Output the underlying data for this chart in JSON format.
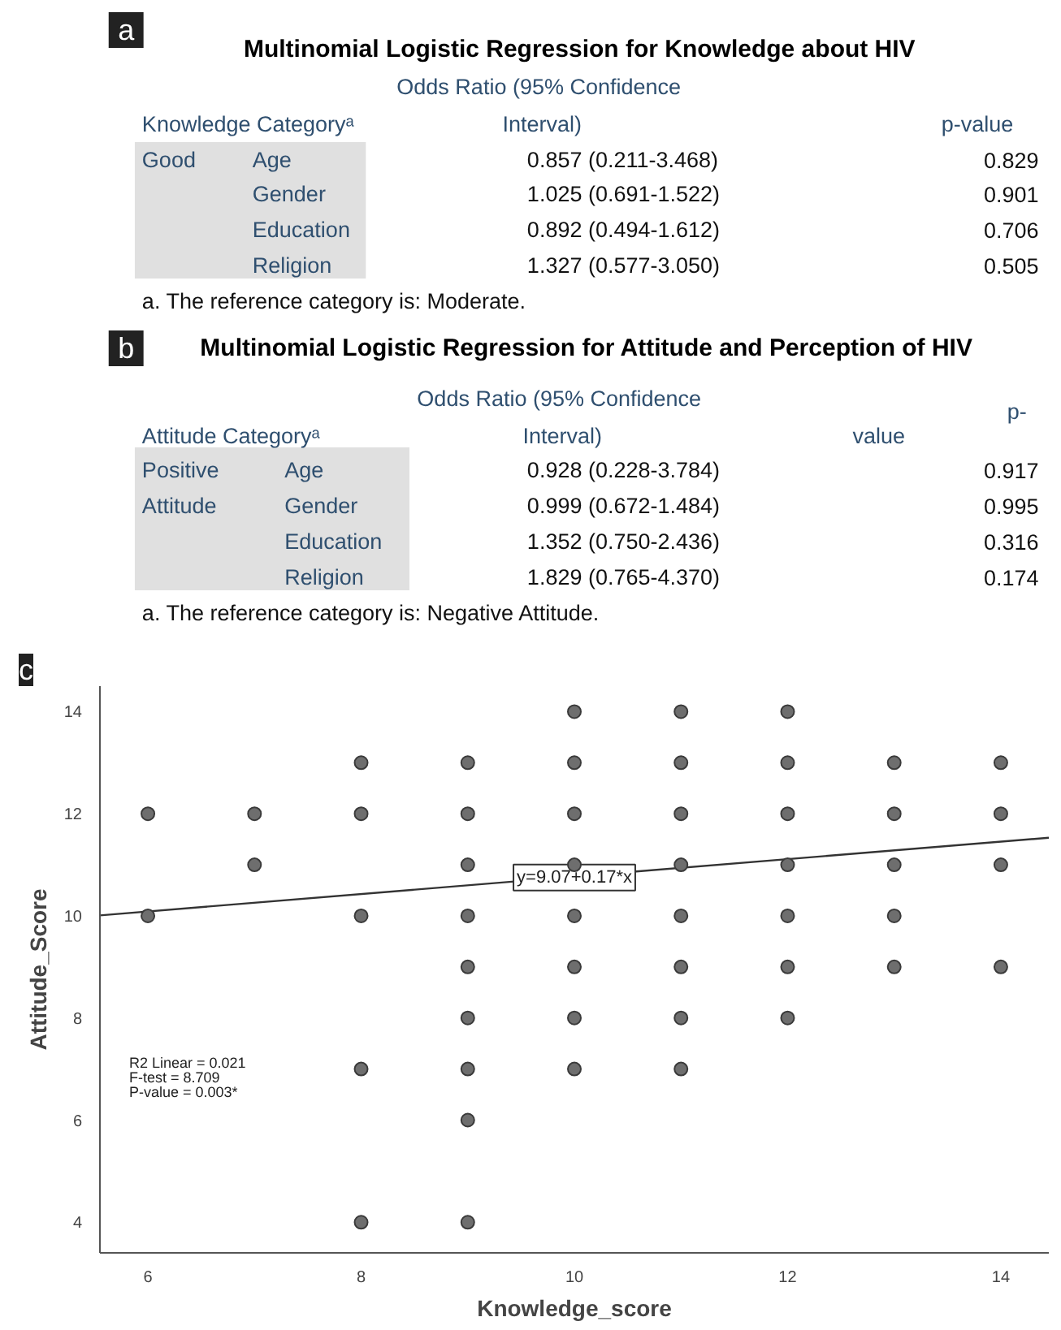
{
  "chart_data": [
    {
      "type": "other",
      "title": "Multinomial Logistic Regression for Knowledge about HIV",
      "annotations": [
        "a",
        "Odds Ratio (95% Confidence",
        "Knowledge Categoryᵃ",
        "Interval)",
        "p-value",
        "Good",
        "Age",
        "0.857 (0.211-3.468)",
        "0.829",
        "Gender",
        "1.025 (0.691-1.522)",
        "0.901",
        "Education",
        "0.892 (0.494-1.612)",
        "0.706",
        "Religion",
        "1.327 (0.577-3.050)",
        "0.505",
        "a. The reference category is: Moderate."
      ]
    },
    {
      "type": "other",
      "title": "Multinomial Logistic Regression for Attitude and Perception of HIV",
      "annotations": [
        "b",
        "Odds Ratio (95% Confidence",
        "p-",
        "Attitude Categoryᵃ",
        "Interval)",
        "value",
        "Positive",
        "Age",
        "0.928 (0.228-3.784)",
        "0.917",
        "Attitude",
        "Gender",
        "0.999 (0.672-1.484)",
        "0.995",
        "Education",
        "1.352 (0.750-2.436)",
        "0.316",
        "Religion",
        "1.829 (0.765-4.370)",
        "0.174",
        "a. The reference category is: Negative Attitude."
      ]
    },
    {
      "type": "scatter",
      "xlabel": "Knowledge_score",
      "ylabel": "Attitude_Score",
      "xlim": [
        5.55,
        14.45
      ],
      "ylim": [
        3.4,
        14.5
      ],
      "xticks": [
        6,
        8,
        10,
        12,
        14
      ],
      "yticks": [
        4,
        6,
        8,
        10,
        12,
        14
      ],
      "grid": false,
      "marker": "circle",
      "series": [
        {
          "type": "scatter",
          "color": "#6e6e6e",
          "x": [
            6,
            6,
            7,
            7,
            8,
            8,
            8,
            8,
            8,
            9,
            9,
            9,
            9,
            9,
            9,
            9,
            9,
            9,
            10,
            10,
            10,
            10,
            10,
            10,
            10,
            10,
            11,
            11,
            11,
            11,
            11,
            11,
            11,
            11,
            12,
            12,
            12,
            12,
            12,
            12,
            12,
            13,
            13,
            13,
            13,
            13,
            14,
            14,
            14,
            14
          ],
          "values": [
            12,
            10,
            12,
            11,
            13,
            12,
            10,
            7,
            4,
            13,
            12,
            11,
            10,
            9,
            8,
            7,
            6,
            4,
            14,
            13,
            12,
            11,
            10,
            9,
            8,
            7,
            14,
            13,
            12,
            11,
            10,
            9,
            8,
            7,
            14,
            13,
            12,
            11,
            10,
            9,
            8,
            13,
            12,
            11,
            10,
            9,
            13,
            12,
            11,
            9
          ]
        },
        {
          "type": "line",
          "marker": "none",
          "color": "#333333",
          "x": [
            5.55,
            14.45
          ],
          "values": [
            10.01,
            11.53
          ]
        }
      ],
      "annotations": [
        "c",
        {
          "text": "y=9.07+0.17*x",
          "x": 10,
          "y": 10.75
        },
        "R2 Linear = 0.021",
        "F-test = 8.709",
        "P-value = 0.003*"
      ]
    }
  ]
}
